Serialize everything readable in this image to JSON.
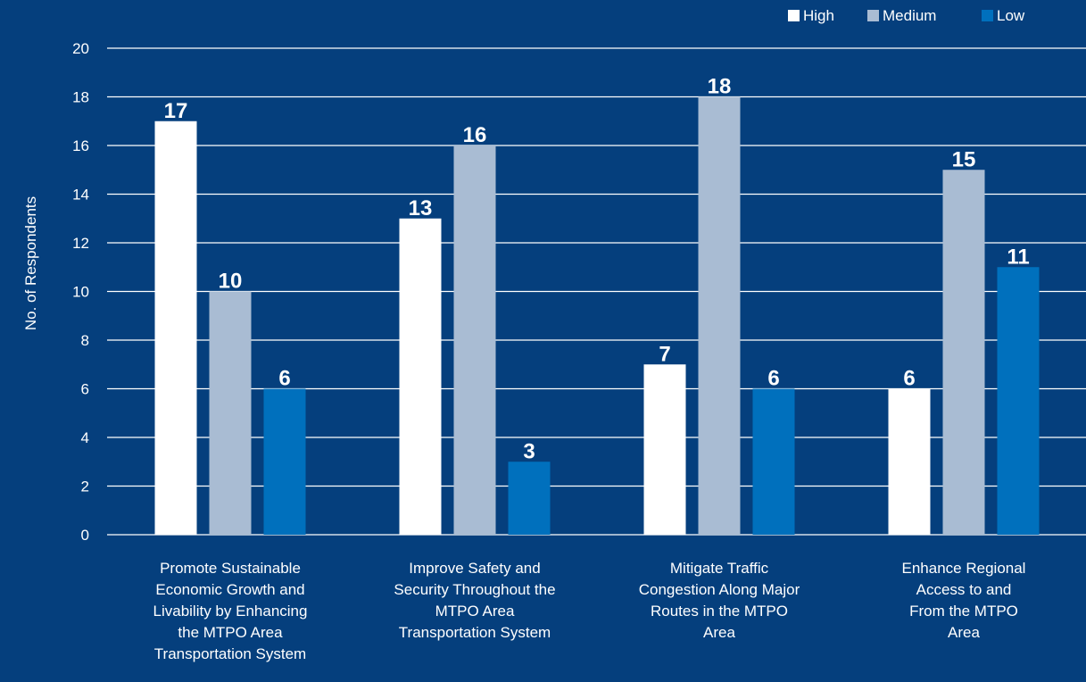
{
  "chart_data": {
    "type": "bar",
    "title": "",
    "xlabel": "",
    "ylabel": "No. of Respondents",
    "ylim": [
      0,
      20
    ],
    "yticks": [
      0,
      2,
      4,
      6,
      8,
      10,
      12,
      14,
      16,
      18,
      20
    ],
    "grid": true,
    "legend_position": "top-right",
    "categories": [
      [
        "Promote Sustainable",
        "Economic Growth and",
        "Livability by Enhancing",
        "the MTPO Area",
        "Transportation System"
      ],
      [
        "Improve Safety and",
        "Security Throughout the",
        "MTPO Area",
        "Transportation System"
      ],
      [
        "Mitigate Traffic",
        "Congestion Along Major",
        "Routes in the MTPO",
        "Area"
      ],
      [
        "Enhance Regional",
        "Access to and",
        "From the MTPO",
        "Area"
      ]
    ],
    "series": [
      {
        "name": "High",
        "color": "#FFFFFF",
        "values": [
          17,
          13,
          7,
          6
        ]
      },
      {
        "name": "Medium",
        "color": "#A9BCD3",
        "values": [
          10,
          16,
          18,
          15
        ]
      },
      {
        "name": "Low",
        "color": "#0070BD",
        "values": [
          6,
          3,
          6,
          11
        ]
      }
    ]
  }
}
